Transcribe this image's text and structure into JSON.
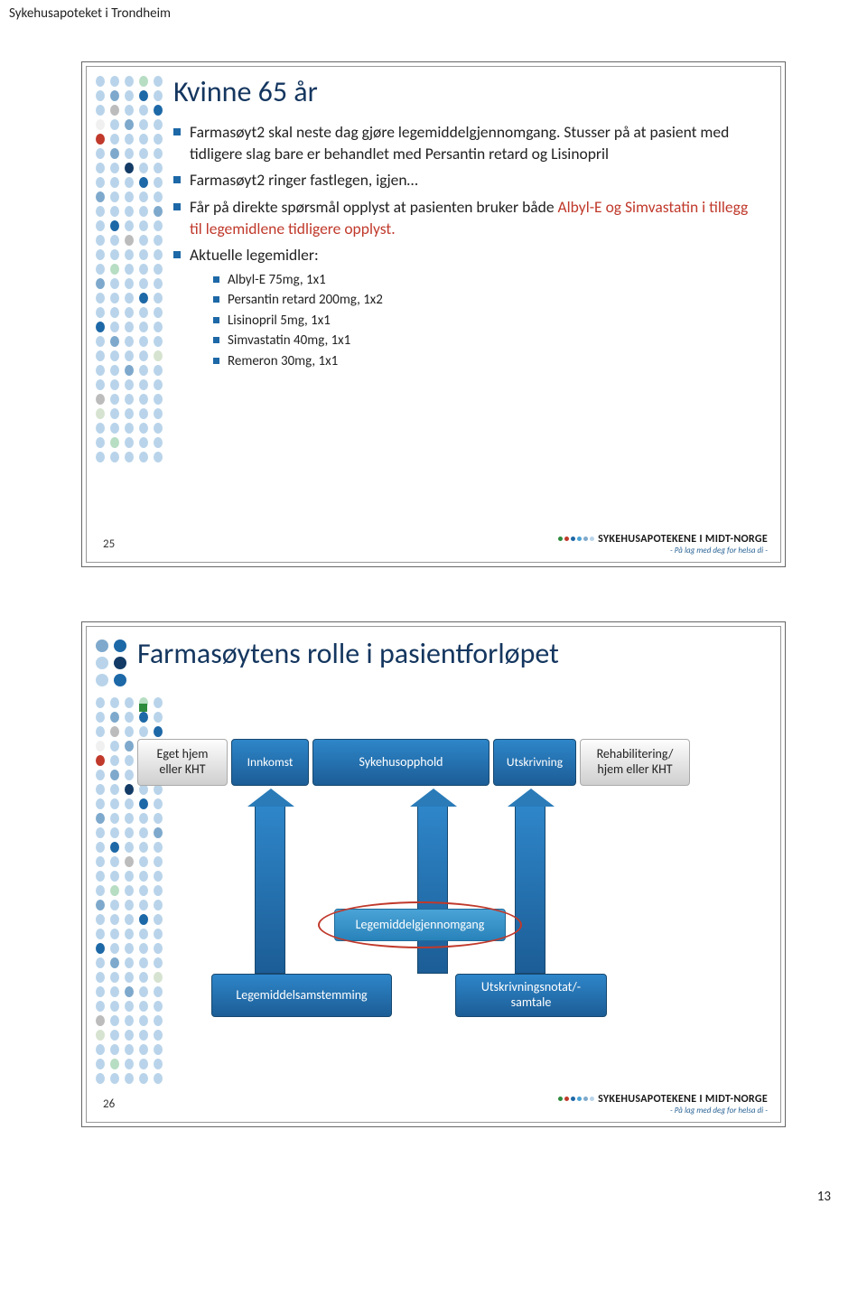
{
  "page_header": "Sykehusapoteket i Trondheim",
  "page_number": "13",
  "footer_brand": "SYKEHUSAPOTEKENE I MIDT-NORGE",
  "footer_tag": "- På lag med deg for helsa di -",
  "colors": {
    "title": "#14365f",
    "bullet": "#1d68a7",
    "red_text": "#c0392b",
    "grey_box_top": "#fdfdfd",
    "grey_box_bot": "#cfcfcf",
    "blue_box_top": "#2e86c9",
    "blue_box_bot": "#1c5d96",
    "light_blue_top": "#4aa3d6",
    "light_blue_bot": "#2983bb",
    "ellipse": "#c0392b"
  },
  "dots": {
    "palette": {
      "lb": "#b9d4ea",
      "mb": "#7ea9cc",
      "db": "#1d68a7",
      "nv": "#133b66",
      "gr": "#b7ddc3",
      "lg": "#d6e3d0",
      "rd": "#c0392b",
      "gy": "#bcbcbc",
      "wh": "#f0f0f0"
    },
    "title_rows": [
      [
        "mb",
        "db"
      ],
      [
        "lb",
        "nv"
      ],
      [
        "lb",
        "db"
      ]
    ],
    "band_rows": [
      [
        "lb",
        "lb",
        "lb",
        "gr",
        "lb"
      ],
      [
        "lb",
        "mb",
        "lb",
        "db",
        "lb"
      ],
      [
        "lb",
        "gy",
        "lb",
        "lb",
        "db"
      ],
      [
        "wh",
        "lb",
        "mb",
        "lb",
        "lb"
      ],
      [
        "rd",
        "lb",
        "lb",
        "lb",
        "lb"
      ],
      [
        "lb",
        "mb",
        "lb",
        "lb",
        "lb"
      ],
      [
        "lb",
        "lb",
        "nv",
        "lb",
        "lb"
      ],
      [
        "lb",
        "lb",
        "lb",
        "db",
        "lb"
      ],
      [
        "mb",
        "lb",
        "lb",
        "lb",
        "lb"
      ],
      [
        "lb",
        "lb",
        "lb",
        "lb",
        "mb"
      ],
      [
        "lb",
        "db",
        "lb",
        "lb",
        "lb"
      ],
      [
        "lb",
        "lb",
        "gy",
        "lb",
        "lb"
      ],
      [
        "lb",
        "lb",
        "lb",
        "lb",
        "lb"
      ],
      [
        "lb",
        "gr",
        "lb",
        "lb",
        "lb"
      ],
      [
        "mb",
        "lb",
        "lb",
        "lb",
        "lb"
      ],
      [
        "lb",
        "lb",
        "lb",
        "db",
        "lb"
      ],
      [
        "lb",
        "lb",
        "lb",
        "lb",
        "lb"
      ],
      [
        "db",
        "lb",
        "lb",
        "lb",
        "lb"
      ],
      [
        "lb",
        "mb",
        "lb",
        "lb",
        "lb"
      ],
      [
        "lb",
        "lb",
        "lb",
        "lb",
        "lg"
      ],
      [
        "lb",
        "lb",
        "mb",
        "lb",
        "lb"
      ],
      [
        "lb",
        "lb",
        "lb",
        "lb",
        "lb"
      ],
      [
        "gy",
        "lb",
        "lb",
        "lb",
        "lb"
      ],
      [
        "lg",
        "lb",
        "lb",
        "lb",
        "lb"
      ],
      [
        "lb",
        "lb",
        "lb",
        "lb",
        "lb"
      ],
      [
        "lb",
        "gr",
        "lb",
        "lb",
        "lb"
      ],
      [
        "lb",
        "lb",
        "lb",
        "lb",
        "lb"
      ]
    ],
    "footer": [
      "#2e8b3d",
      "#c0392b",
      "#1d68a7",
      "#4aa3d6",
      "#7ea9cc",
      "#b9d4ea"
    ]
  },
  "slide1": {
    "number": "25",
    "title": "Kvinne 65 år",
    "bullets": [
      {
        "text": "Farmasøyt2 skal neste dag gjøre legemiddelgjennomgang. Stusser på at pasient med tidligere slag bare er behandlet med Persantin retard og Lisinopril"
      },
      {
        "text": "Farmasøyt2 ringer fastlegen, igjen…"
      },
      {
        "text": "Får på direkte spørsmål opplyst at pasienten bruker både ",
        "red_tail": "Albyl-E og Simvastatin i tillegg til legemidlene tidligere opplyst."
      },
      {
        "text": "Aktuelle legemidler:",
        "sub": [
          {
            "text": "Albyl-E 75mg, 1x1",
            "red": true
          },
          {
            "text": "Persantin retard 200mg, 1x2"
          },
          {
            "text": "Lisinopril 5mg, 1x1"
          },
          {
            "text": "Simvastatin 40mg, 1x1",
            "red": true
          },
          {
            "text": "Remeron 30mg, 1x1"
          }
        ]
      }
    ]
  },
  "slide2": {
    "number": "26",
    "title": "Farmasøytens rolle i pasientforløpet",
    "boxes": {
      "egethjem": {
        "label": "Eget hjem eller KHT"
      },
      "innkomst": {
        "label": "Innkomst"
      },
      "sykehus": {
        "label": "Sykehusopphold"
      },
      "utskrivning": {
        "label": "Utskrivning"
      },
      "rehab": {
        "label": "Rehabilitering/ hjem eller KHT"
      },
      "gjennom": {
        "label": "Legemiddelgjennomgang"
      },
      "samst": {
        "label": "Legemiddelsamstemming"
      },
      "notat": {
        "label": "Utskrivningsnotat/- samtale"
      }
    }
  }
}
